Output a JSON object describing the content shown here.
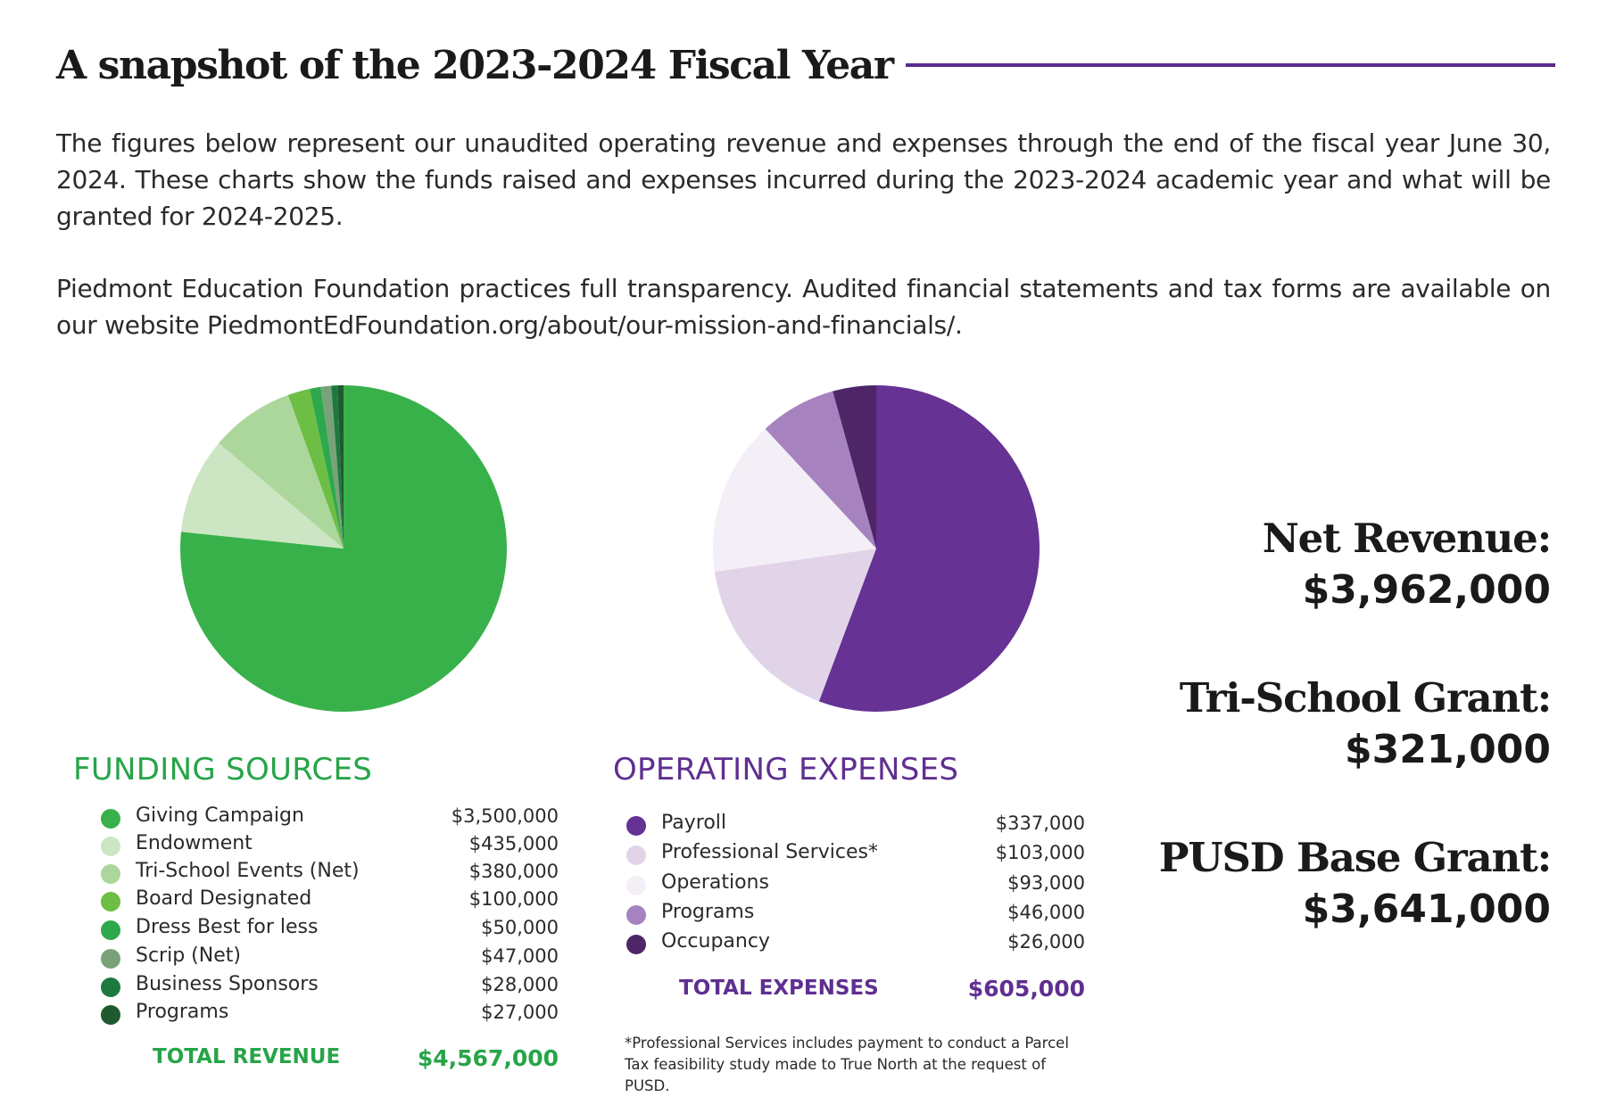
{
  "header": {
    "title": "A snapshot of the 2023-2024 Fiscal Year",
    "accent_color": "#5b2a8e"
  },
  "intro": {
    "paragraph1": "The figures below represent our unaudited operating revenue and expenses through the end of the fiscal year June 30, 2024. These charts show the funds raised and expenses incurred during the 2023-2024 academic year and what will be granted for 2024-2025.",
    "paragraph2": "Piedmont Education Foundation practices full transparency. Audited financial statements and tax forms are available on our website PiedmontEdFoundation.org/about/our-mission-and-financials/."
  },
  "funding": {
    "title": "FUNDING SOURCES",
    "items": [
      {
        "label": "Giving Campaign",
        "value_text": "$3,500,000",
        "color": "#39b14a"
      },
      {
        "label": "Endowment",
        "value_text": "$435,000",
        "color": "#cce6c4"
      },
      {
        "label": "Tri-School Events (Net)",
        "value_text": "$380,000",
        "color": "#acd79c"
      },
      {
        "label": "Board Designated",
        "value_text": "$100,000",
        "color": "#6dbe45"
      },
      {
        "label": "Dress Best for less",
        "value_text": "$50,000",
        "color": "#2ea84c"
      },
      {
        "label": "Scrip (Net)",
        "value_text": "$47,000",
        "color": "#7aa27a"
      },
      {
        "label": "Business Sponsors",
        "value_text": "$28,000",
        "color": "#1d7a3f"
      },
      {
        "label": "Programs",
        "value_text": "$27,000",
        "color": "#1f5a2e"
      }
    ],
    "total_label": "TOTAL REVENUE",
    "total_value": "$4,567,000",
    "title_color": "#27a449"
  },
  "expenses": {
    "title": "OPERATING EXPENSES",
    "items": [
      {
        "label": "Payroll",
        "value_text": "$337,000",
        "color": "#663293"
      },
      {
        "label": "Professional Services*",
        "value_text": "$103,000",
        "color": "#e2d4e8"
      },
      {
        "label": "Operations",
        "value_text": "$93,000",
        "color": "#f4eff7"
      },
      {
        "label": "Programs",
        "value_text": "$46,000",
        "color": "#a683bf"
      },
      {
        "label": "Occupancy",
        "value_text": "$26,000",
        "color": "#4e2667"
      }
    ],
    "total_label": "TOTAL EXPENSES",
    "total_value": "$605,000",
    "title_color": "#5f2f90",
    "footnote": "*Professional Services includes payment to conduct a Parcel Tax feasibility study made to True North at the request of PUSD."
  },
  "summary": [
    {
      "label": "Net Revenue:",
      "value": "$3,962,000"
    },
    {
      "label": "Tri-School Grant:",
      "value": "$321,000"
    },
    {
      "label": "PUSD Base Grant:",
      "value": "$3,641,000"
    }
  ],
  "chart_data": [
    {
      "type": "pie",
      "title": "FUNDING SOURCES",
      "categories": [
        "Giving Campaign",
        "Endowment",
        "Tri-School Events (Net)",
        "Board Designated",
        "Dress Best for less",
        "Scrip (Net)",
        "Business Sponsors",
        "Programs"
      ],
      "values": [
        3500000,
        435000,
        380000,
        100000,
        50000,
        47000,
        28000,
        27000
      ],
      "colors": [
        "#39b14a",
        "#cce6c4",
        "#acd79c",
        "#6dbe45",
        "#2ea84c",
        "#7aa27a",
        "#1d7a3f",
        "#1f5a2e"
      ],
      "start": "12 o'clock",
      "direction": "clockwise"
    },
    {
      "type": "pie",
      "title": "OPERATING EXPENSES",
      "categories": [
        "Payroll",
        "Professional Services*",
        "Operations",
        "Programs",
        "Occupancy"
      ],
      "values": [
        337000,
        103000,
        93000,
        46000,
        26000
      ],
      "colors": [
        "#663293",
        "#e2d4e8",
        "#f4eff7",
        "#a683bf",
        "#4e2667"
      ],
      "start": "12 o'clock",
      "direction": "clockwise"
    }
  ]
}
